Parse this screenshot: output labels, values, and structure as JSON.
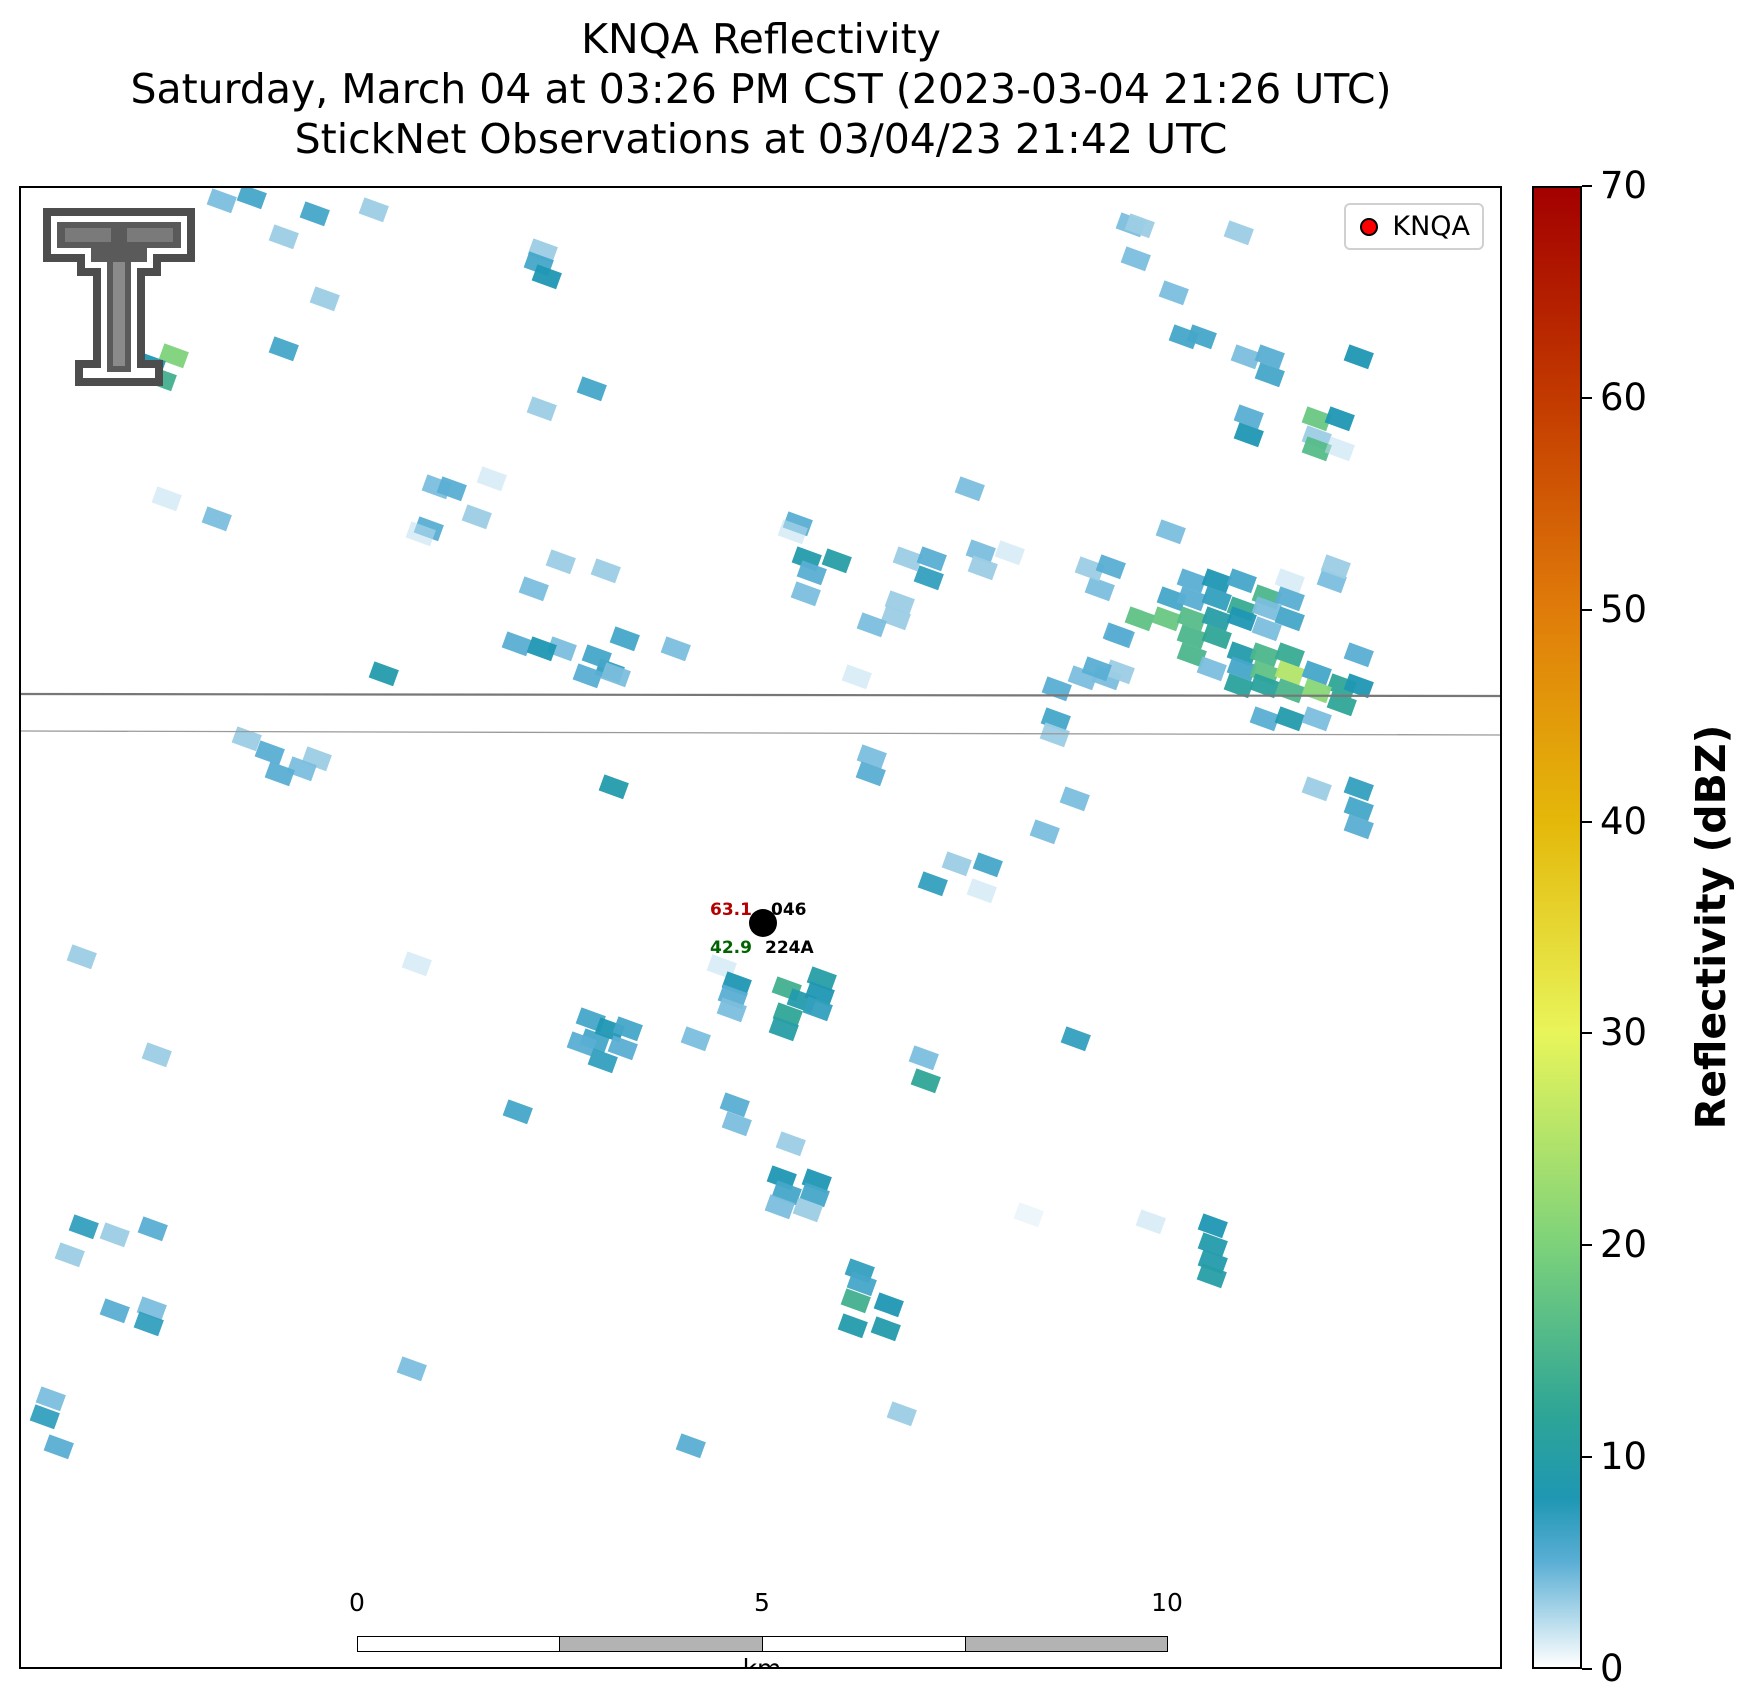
{
  "title": {
    "line1": "KNQA Reflectivity",
    "line2": "Saturday, March 04 at 03:26 PM CST (2023-03-04 21:26 UTC)",
    "line3": "StickNet Observations at 03/04/23 21:42 UTC"
  },
  "legend": {
    "label": "KNQA",
    "marker_color": "#ff0000"
  },
  "logo": {
    "icon": "texas-tech-double-t-logo",
    "color": "#5a5a5a"
  },
  "station": {
    "temperature": "63.1",
    "id_top": "046",
    "dewpoint": "42.9",
    "id_bottom": "224A",
    "temperature_color": "#b30000",
    "dewpoint_color": "#006400"
  },
  "scalebar": {
    "labels": [
      "0",
      "5",
      "10"
    ],
    "unit": "km",
    "km_total": 10
  },
  "colorbar": {
    "label": "Reflectivity (dBZ)",
    "min": 0,
    "max": 70,
    "ticks": [
      "0",
      "10",
      "20",
      "30",
      "40",
      "50",
      "60",
      "70"
    ],
    "colors": [
      {
        "v": 0,
        "c": "#ffffff"
      },
      {
        "v": 5,
        "c": "#5aaed4"
      },
      {
        "v": 8,
        "c": "#1f97b3"
      },
      {
        "v": 12,
        "c": "#2ea596"
      },
      {
        "v": 20,
        "c": "#7dd27a"
      },
      {
        "v": 30,
        "c": "#e8f55a"
      },
      {
        "v": 40,
        "c": "#e4b80a"
      },
      {
        "v": 50,
        "c": "#e07c0a"
      },
      {
        "v": 60,
        "c": "#c33a00"
      },
      {
        "v": 70,
        "c": "#a30000"
      }
    ]
  },
  "chart_data": {
    "type": "heatmap",
    "unit": "dBZ",
    "cells_dbz": [
      [
        200,
        12,
        4
      ],
      [
        230,
        8,
        6
      ],
      [
        262,
        48,
        3
      ],
      [
        293,
        25,
        6
      ],
      [
        352,
        21,
        3
      ],
      [
        262,
        160,
        6
      ],
      [
        152,
        167,
        20
      ],
      [
        140,
        190,
        14
      ],
      [
        129,
        176,
        8
      ],
      [
        195,
        330,
        4
      ],
      [
        145,
        310,
        2
      ],
      [
        303,
        110,
        3
      ],
      [
        521,
        62,
        3
      ],
      [
        517,
        75,
        6
      ],
      [
        525,
        88,
        8
      ],
      [
        570,
        200,
        6
      ],
      [
        520,
        220,
        3
      ],
      [
        415,
        298,
        4
      ],
      [
        430,
        300,
        5
      ],
      [
        407,
        340,
        5
      ],
      [
        455,
        328,
        3
      ],
      [
        399,
        345,
        2
      ],
      [
        470,
        290,
        2
      ],
      [
        584,
        382,
        3
      ],
      [
        603,
        450,
        6
      ],
      [
        588,
        482,
        7
      ],
      [
        575,
        468,
        6
      ],
      [
        594,
        486,
        4
      ],
      [
        566,
        487,
        5
      ],
      [
        540,
        460,
        4
      ],
      [
        495,
        455,
        5
      ],
      [
        520,
        460,
        8
      ],
      [
        654,
        460,
        4
      ],
      [
        362,
        485,
        9
      ],
      [
        225,
        550,
        3
      ],
      [
        248,
        564,
        5
      ],
      [
        295,
        570,
        3
      ],
      [
        280,
        580,
        4
      ],
      [
        258,
        585,
        5
      ],
      [
        592,
        598,
        9
      ],
      [
        60,
        768,
        3
      ],
      [
        135,
        866,
        3
      ],
      [
        395,
        775,
        2
      ],
      [
        569,
        831,
        6
      ],
      [
        573,
        852,
        6
      ],
      [
        588,
        841,
        8
      ],
      [
        606,
        840,
        6
      ],
      [
        601,
        859,
        5
      ],
      [
        560,
        855,
        5
      ],
      [
        581,
        872,
        7
      ],
      [
        674,
        850,
        4
      ],
      [
        700,
        778,
        2
      ],
      [
        715,
        795,
        8
      ],
      [
        711,
        808,
        5
      ],
      [
        710,
        821,
        4
      ],
      [
        765,
        800,
        14
      ],
      [
        780,
        812,
        9
      ],
      [
        766,
        826,
        12
      ],
      [
        762,
        840,
        10
      ],
      [
        800,
        790,
        10
      ],
      [
        798,
        805,
        8
      ],
      [
        796,
        820,
        7
      ],
      [
        902,
        869,
        4
      ],
      [
        904,
        892,
        12
      ],
      [
        1054,
        850,
        7
      ],
      [
        496,
        923,
        6
      ],
      [
        713,
        916,
        5
      ],
      [
        715,
        935,
        4
      ],
      [
        769,
        955,
        3
      ],
      [
        760,
        989,
        8
      ],
      [
        765,
        1004,
        6
      ],
      [
        795,
        992,
        8
      ],
      [
        793,
        1006,
        6
      ],
      [
        758,
        1018,
        4
      ],
      [
        786,
        1021,
        3
      ],
      [
        838,
        1082,
        7
      ],
      [
        840,
        1095,
        6
      ],
      [
        834,
        1112,
        14
      ],
      [
        867,
        1116,
        8
      ],
      [
        831,
        1137,
        9
      ],
      [
        864,
        1140,
        9
      ],
      [
        880,
        1225,
        3
      ],
      [
        62,
        1038,
        7
      ],
      [
        93,
        1046,
        3
      ],
      [
        131,
        1040,
        5
      ],
      [
        48,
        1066,
        3
      ],
      [
        93,
        1122,
        5
      ],
      [
        130,
        1120,
        4
      ],
      [
        127,
        1135,
        7
      ],
      [
        390,
        1180,
        4
      ],
      [
        29,
        1210,
        4
      ],
      [
        23,
        1228,
        7
      ],
      [
        37,
        1258,
        5
      ],
      [
        1191,
        1037,
        8
      ],
      [
        1191,
        1056,
        9
      ],
      [
        1191,
        1073,
        9
      ],
      [
        1190,
        1087,
        10
      ],
      [
        1129,
        1033,
        2
      ],
      [
        1007,
        1026,
        1
      ],
      [
        669,
        1257,
        5
      ],
      [
        512,
        400,
        4
      ],
      [
        539,
        373,
        3
      ],
      [
        776,
        335,
        5
      ],
      [
        785,
        370,
        9
      ],
      [
        815,
        372,
        10
      ],
      [
        790,
        384,
        5
      ],
      [
        784,
        405,
        4
      ],
      [
        886,
        370,
        3
      ],
      [
        910,
        370,
        5
      ],
      [
        907,
        389,
        7
      ],
      [
        878,
        414,
        3
      ],
      [
        874,
        429,
        3
      ],
      [
        850,
        436,
        4
      ],
      [
        835,
        488,
        2
      ],
      [
        850,
        568,
        4
      ],
      [
        849,
        585,
        5
      ],
      [
        959,
        363,
        4
      ],
      [
        961,
        379,
        3
      ],
      [
        988,
        364,
        2
      ],
      [
        948,
        300,
        4
      ],
      [
        771,
        343,
        2
      ],
      [
        1078,
        400,
        4
      ],
      [
        1096,
        446,
        5
      ],
      [
        1035,
        500,
        5
      ],
      [
        1061,
        489,
        4
      ],
      [
        1085,
        489,
        4
      ],
      [
        1034,
        531,
        6
      ],
      [
        1033,
        546,
        3
      ],
      [
        1053,
        610,
        4
      ],
      [
        1023,
        643,
        4
      ],
      [
        911,
        695,
        7
      ],
      [
        935,
        675,
        3
      ],
      [
        966,
        676,
        6
      ],
      [
        960,
        702,
        2
      ],
      [
        1109,
        36,
        4
      ],
      [
        1114,
        70,
        4
      ],
      [
        1118,
        37,
        3
      ],
      [
        1152,
        104,
        4
      ],
      [
        1162,
        148,
        6
      ],
      [
        1180,
        148,
        6
      ],
      [
        1224,
        168,
        4
      ],
      [
        1248,
        168,
        5
      ],
      [
        1248,
        186,
        6
      ],
      [
        1337,
        168,
        8
      ],
      [
        1227,
        228,
        5
      ],
      [
        1227,
        246,
        8
      ],
      [
        1295,
        230,
        18
      ],
      [
        1318,
        230,
        8
      ],
      [
        1295,
        249,
        3
      ],
      [
        1295,
        260,
        16
      ],
      [
        1318,
        260,
        2
      ],
      [
        1217,
        44,
        3
      ],
      [
        1149,
        343,
        4
      ],
      [
        1170,
        392,
        5
      ],
      [
        1195,
        392,
        8
      ],
      [
        1220,
        392,
        6
      ],
      [
        1245,
        408,
        15
      ],
      [
        1268,
        392,
        2
      ],
      [
        1310,
        392,
        4
      ],
      [
        1150,
        410,
        6
      ],
      [
        1170,
        410,
        5
      ],
      [
        1195,
        410,
        7
      ],
      [
        1220,
        420,
        13
      ],
      [
        1245,
        420,
        4
      ],
      [
        1268,
        410,
        5
      ],
      [
        1118,
        430,
        17
      ],
      [
        1145,
        430,
        18
      ],
      [
        1170,
        430,
        16
      ],
      [
        1195,
        430,
        10
      ],
      [
        1220,
        430,
        8
      ],
      [
        1245,
        440,
        4
      ],
      [
        1268,
        430,
        6
      ],
      [
        1098,
        447,
        5
      ],
      [
        1170,
        448,
        15
      ],
      [
        1195,
        448,
        12
      ],
      [
        1220,
        465,
        9
      ],
      [
        1243,
        466,
        15
      ],
      [
        1268,
        466,
        13
      ],
      [
        1170,
        466,
        15
      ],
      [
        1190,
        480,
        4
      ],
      [
        1220,
        480,
        6
      ],
      [
        1243,
        484,
        17
      ],
      [
        1268,
        484,
        25
      ],
      [
        1295,
        484,
        6
      ],
      [
        1320,
        497,
        12
      ],
      [
        1337,
        497,
        8
      ],
      [
        1217,
        497,
        11
      ],
      [
        1243,
        497,
        11
      ],
      [
        1268,
        502,
        15
      ],
      [
        1295,
        502,
        21
      ],
      [
        1320,
        515,
        12
      ],
      [
        1243,
        530,
        5
      ],
      [
        1268,
        530,
        9
      ],
      [
        1295,
        530,
        4
      ],
      [
        1337,
        600,
        7
      ],
      [
        1337,
        620,
        6
      ],
      [
        1337,
        638,
        5
      ],
      [
        1295,
        600,
        3
      ],
      [
        1314,
        378,
        3
      ],
      [
        1337,
        466,
        5
      ],
      [
        1098,
        483,
        3
      ],
      [
        1075,
        480,
        5
      ],
      [
        1068,
        380,
        3
      ],
      [
        1089,
        378,
        5
      ]
    ]
  }
}
